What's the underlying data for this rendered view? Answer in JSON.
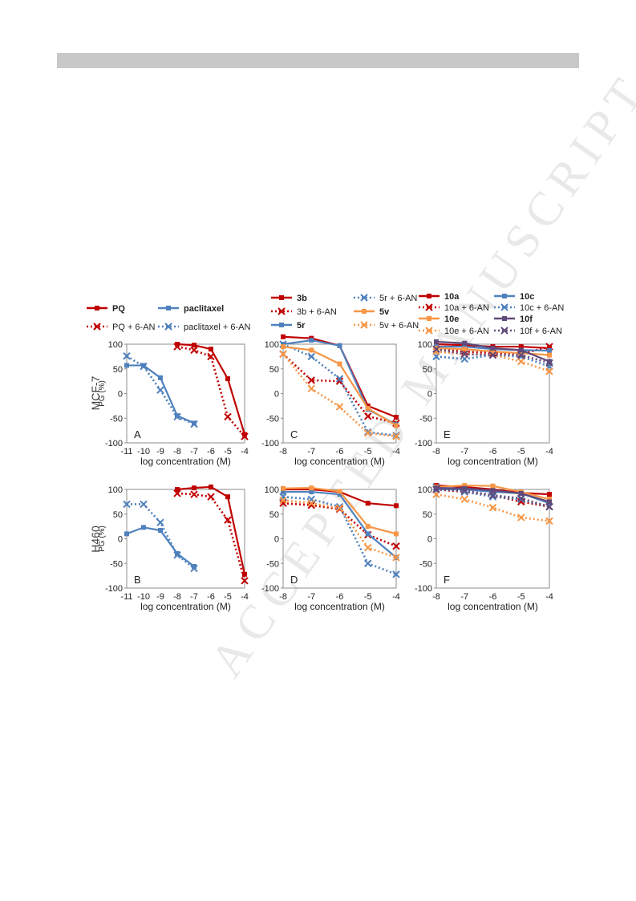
{
  "watermark": "ACCEPTED MANUSCRIPT",
  "colors": {
    "red": "#c00000",
    "blue": "#4f81bd",
    "orange": "#f79646",
    "purple": "#604a7b"
  },
  "row_labels": [
    "MCF-7",
    "H460"
  ],
  "legends": [
    {
      "items": [
        {
          "label": "PQ",
          "color": "red",
          "style": "solid"
        },
        {
          "label": "paclitaxel",
          "color": "blue",
          "style": "solid"
        },
        {
          "label": "PQ + 6-AN",
          "color": "red",
          "style": "dotted"
        },
        {
          "label": "paclitaxel + 6-AN",
          "color": "blue",
          "style": "dotted"
        }
      ]
    },
    {
      "items": [
        {
          "label": "3b",
          "color": "red",
          "style": "solid"
        },
        {
          "label": "5r + 6-AN",
          "color": "blue",
          "style": "dotted"
        },
        {
          "label": "3b + 6-AN",
          "color": "red",
          "style": "dotted"
        },
        {
          "label": "5v",
          "color": "orange",
          "style": "solid"
        },
        {
          "label": "5r",
          "color": "blue",
          "style": "solid"
        },
        {
          "label": "5v + 6-AN",
          "color": "orange",
          "style": "dotted"
        }
      ]
    },
    {
      "items": [
        {
          "label": "10a",
          "color": "red",
          "style": "solid"
        },
        {
          "label": "10c",
          "color": "blue",
          "style": "solid"
        },
        {
          "label": "10a + 6-AN",
          "color": "red",
          "style": "dotted"
        },
        {
          "label": "10c + 6-AN",
          "color": "blue",
          "style": "dotted"
        },
        {
          "label": "10e",
          "color": "orange",
          "style": "solid"
        },
        {
          "label": "10f",
          "color": "purple",
          "style": "solid"
        },
        {
          "label": "10e + 6-AN",
          "color": "orange",
          "style": "dotted"
        },
        {
          "label": "10f + 6-AN",
          "color": "purple",
          "style": "dotted"
        }
      ]
    }
  ],
  "chart_data": [
    {
      "panel": "A",
      "type": "line",
      "xlabel": "log concentration (M)",
      "ylabel": "PG (%)",
      "xlim": [
        -11,
        -4
      ],
      "ylim": [
        -100,
        100
      ],
      "xticks": [
        -11,
        -10,
        -9,
        -8,
        -7,
        -6,
        -5,
        -4
      ],
      "yticks": [
        100,
        50,
        0,
        -50,
        -100
      ],
      "series": [
        {
          "name": "PQ",
          "color": "red",
          "style": "solid",
          "x": [
            -8,
            -7,
            -6,
            -5,
            -4
          ],
          "y": [
            100,
            98,
            90,
            30,
            -83
          ]
        },
        {
          "name": "PQ + 6-AN",
          "color": "red",
          "style": "dotted",
          "x": [
            -8,
            -7,
            -6,
            -5,
            -4
          ],
          "y": [
            95,
            88,
            75,
            -47,
            -87
          ]
        },
        {
          "name": "paclitaxel",
          "color": "blue",
          "style": "solid",
          "x": [
            -11,
            -10,
            -9,
            -8,
            -7
          ],
          "y": [
            57,
            57,
            32,
            -45,
            -60
          ]
        },
        {
          "name": "paclitaxel + 6-AN",
          "color": "blue",
          "style": "dotted",
          "x": [
            -11,
            -10,
            -9,
            -8,
            -7
          ],
          "y": [
            76,
            55,
            7,
            -47,
            -62
          ]
        }
      ]
    },
    {
      "panel": "C",
      "type": "line",
      "xlabel": "log concentration (M)",
      "ylabel": "",
      "xlim": [
        -8,
        -4
      ],
      "ylim": [
        -100,
        100
      ],
      "xticks": [
        -8,
        -7,
        -6,
        -5,
        -4
      ],
      "yticks": [
        100,
        50,
        0,
        -50,
        -100
      ],
      "series": [
        {
          "name": "3b",
          "color": "red",
          "style": "solid",
          "x": [
            -8,
            -7,
            -6,
            -5,
            -4
          ],
          "y": [
            115,
            112,
            97,
            -25,
            -48
          ]
        },
        {
          "name": "3b + 6-AN",
          "color": "red",
          "style": "dotted",
          "x": [
            -8,
            -7,
            -6,
            -5,
            -4
          ],
          "y": [
            80,
            27,
            25,
            -46,
            -60
          ]
        },
        {
          "name": "5r",
          "color": "blue",
          "style": "solid",
          "x": [
            -8,
            -7,
            -6,
            -5,
            -4
          ],
          "y": [
            100,
            108,
            97,
            -32,
            -63
          ]
        },
        {
          "name": "5r + 6-AN",
          "color": "blue",
          "style": "dotted",
          "x": [
            -8,
            -7,
            -6,
            -5,
            -4
          ],
          "y": [
            100,
            75,
            30,
            -78,
            -85
          ]
        },
        {
          "name": "5v",
          "color": "orange",
          "style": "solid",
          "x": [
            -8,
            -7,
            -6,
            -5,
            -4
          ],
          "y": [
            95,
            88,
            60,
            -30,
            -65
          ]
        },
        {
          "name": "5v + 6-AN",
          "color": "orange",
          "style": "dotted",
          "x": [
            -8,
            -7,
            -6,
            -5,
            -4
          ],
          "y": [
            80,
            10,
            -27,
            -80,
            -87
          ]
        }
      ]
    },
    {
      "panel": "E",
      "type": "line",
      "xlabel": "log concentration (M)",
      "ylabel": "",
      "xlim": [
        -8,
        -4
      ],
      "ylim": [
        -100,
        100
      ],
      "xticks": [
        -8,
        -7,
        -6,
        -5,
        -4
      ],
      "yticks": [
        100,
        50,
        0,
        -50,
        -100
      ],
      "series": [
        {
          "name": "10a",
          "color": "red",
          "style": "solid",
          "x": [
            -8,
            -7,
            -6,
            -5,
            -4
          ],
          "y": [
            100,
            98,
            95,
            95,
            92
          ]
        },
        {
          "name": "10a + 6-AN",
          "color": "red",
          "style": "dotted",
          "x": [
            -8,
            -7,
            -6,
            -5,
            -4
          ],
          "y": [
            90,
            85,
            82,
            80,
            95
          ]
        },
        {
          "name": "10c",
          "color": "blue",
          "style": "solid",
          "x": [
            -8,
            -7,
            -6,
            -5,
            -4
          ],
          "y": [
            95,
            95,
            90,
            88,
            87
          ]
        },
        {
          "name": "10c + 6-AN",
          "color": "blue",
          "style": "dotted",
          "x": [
            -8,
            -7,
            -6,
            -5,
            -4
          ],
          "y": [
            75,
            70,
            78,
            75,
            55
          ]
        },
        {
          "name": "10e",
          "color": "orange",
          "style": "solid",
          "x": [
            -8,
            -7,
            -6,
            -5,
            -4
          ],
          "y": [
            92,
            90,
            85,
            82,
            78
          ]
        },
        {
          "name": "10e + 6-AN",
          "color": "orange",
          "style": "dotted",
          "x": [
            -8,
            -7,
            -6,
            -5,
            -4
          ],
          "y": [
            85,
            80,
            78,
            65,
            45
          ]
        },
        {
          "name": "10f",
          "color": "purple",
          "style": "solid",
          "x": [
            -8,
            -7,
            -6,
            -5,
            -4
          ],
          "y": [
            105,
            102,
            92,
            88,
            65
          ]
        },
        {
          "name": "10f + 6-AN",
          "color": "purple",
          "style": "dotted",
          "x": [
            -8,
            -7,
            -6,
            -5,
            -4
          ],
          "y": [
            90,
            80,
            78,
            78,
            62
          ]
        }
      ]
    },
    {
      "panel": "B",
      "type": "line",
      "xlabel": "log concentration (M)",
      "ylabel": "PG (%)",
      "xlim": [
        -11,
        -4
      ],
      "ylim": [
        -100,
        100
      ],
      "xticks": [
        -11,
        -10,
        -9,
        -8,
        -7,
        -6,
        -5,
        -4
      ],
      "yticks": [
        100,
        50,
        0,
        -50,
        -100
      ],
      "series": [
        {
          "name": "PQ",
          "color": "red",
          "style": "solid",
          "x": [
            -8,
            -7,
            -6,
            -5,
            -4
          ],
          "y": [
            100,
            103,
            105,
            85,
            -72
          ]
        },
        {
          "name": "PQ + 6-AN",
          "color": "red",
          "style": "dotted",
          "x": [
            -8,
            -7,
            -6,
            -5,
            -4
          ],
          "y": [
            92,
            90,
            85,
            38,
            -85
          ]
        },
        {
          "name": "paclitaxel",
          "color": "blue",
          "style": "solid",
          "x": [
            -11,
            -10,
            -9,
            -8,
            -7
          ],
          "y": [
            10,
            23,
            17,
            -30,
            -56
          ]
        },
        {
          "name": "paclitaxel + 6-AN",
          "color": "blue",
          "style": "dotted",
          "x": [
            -11,
            -10,
            -9,
            -8,
            -7
          ],
          "y": [
            70,
            70,
            33,
            -33,
            -60
          ]
        }
      ]
    },
    {
      "panel": "D",
      "type": "line",
      "xlabel": "log concentration (M)",
      "ylabel": "",
      "xlim": [
        -8,
        -4
      ],
      "ylim": [
        -100,
        100
      ],
      "xticks": [
        -8,
        -7,
        -6,
        -5,
        -4
      ],
      "yticks": [
        100,
        50,
        0,
        -50,
        -100
      ],
      "series": [
        {
          "name": "3b",
          "color": "red",
          "style": "solid",
          "x": [
            -8,
            -7,
            -6,
            -5,
            -4
          ],
          "y": [
            100,
            100,
            95,
            72,
            67
          ]
        },
        {
          "name": "3b + 6-AN",
          "color": "red",
          "style": "dotted",
          "x": [
            -8,
            -7,
            -6,
            -5,
            -4
          ],
          "y": [
            72,
            68,
            60,
            8,
            -15
          ]
        },
        {
          "name": "5r",
          "color": "blue",
          "style": "solid",
          "x": [
            -8,
            -7,
            -6,
            -5,
            -4
          ],
          "y": [
            95,
            95,
            90,
            10,
            -38
          ]
        },
        {
          "name": "5r + 6-AN",
          "color": "blue",
          "style": "dotted",
          "x": [
            -8,
            -7,
            -6,
            -5,
            -4
          ],
          "y": [
            85,
            80,
            65,
            -50,
            -72
          ]
        },
        {
          "name": "5v",
          "color": "orange",
          "style": "solid",
          "x": [
            -8,
            -7,
            -6,
            -5,
            -4
          ],
          "y": [
            102,
            103,
            96,
            25,
            10
          ]
        },
        {
          "name": "5v + 6-AN",
          "color": "orange",
          "style": "dotted",
          "x": [
            -8,
            -7,
            -6,
            -5,
            -4
          ],
          "y": [
            78,
            72,
            62,
            -18,
            -38
          ]
        }
      ]
    },
    {
      "panel": "F",
      "type": "line",
      "xlabel": "log concentration (M)",
      "ylabel": "",
      "xlim": [
        -8,
        -4
      ],
      "ylim": [
        -100,
        100
      ],
      "xticks": [
        -8,
        -7,
        -6,
        -5,
        -4
      ],
      "yticks": [
        100,
        50,
        0,
        -50,
        -100
      ],
      "series": [
        {
          "name": "10a",
          "color": "red",
          "style": "solid",
          "x": [
            -8,
            -7,
            -6,
            -5,
            -4
          ],
          "y": [
            108,
            105,
            100,
            93,
            90
          ]
        },
        {
          "name": "10a + 6-AN",
          "color": "red",
          "style": "dotted",
          "x": [
            -8,
            -7,
            -6,
            -5,
            -4
          ],
          "y": [
            100,
            95,
            88,
            75,
            65
          ]
        },
        {
          "name": "10c",
          "color": "blue",
          "style": "solid",
          "x": [
            -8,
            -7,
            -6,
            -5,
            -4
          ],
          "y": [
            100,
            100,
            95,
            92,
            72
          ]
        },
        {
          "name": "10c + 6-AN",
          "color": "blue",
          "style": "dotted",
          "x": [
            -8,
            -7,
            -6,
            -5,
            -4
          ],
          "y": [
            105,
            95,
            85,
            80,
            65
          ]
        },
        {
          "name": "10e",
          "color": "orange",
          "style": "solid",
          "x": [
            -8,
            -7,
            -6,
            -5,
            -4
          ],
          "y": [
            105,
            108,
            107,
            95,
            80
          ]
        },
        {
          "name": "10e + 6-AN",
          "color": "orange",
          "style": "dotted",
          "x": [
            -8,
            -7,
            -6,
            -5,
            -4
          ],
          "y": [
            90,
            80,
            63,
            43,
            36
          ]
        },
        {
          "name": "10f",
          "color": "purple",
          "style": "solid",
          "x": [
            -8,
            -7,
            -6,
            -5,
            -4
          ],
          "y": [
            103,
            102,
            98,
            92,
            75
          ]
        },
        {
          "name": "10f + 6-AN",
          "color": "purple",
          "style": "dotted",
          "x": [
            -8,
            -7,
            -6,
            -5,
            -4
          ],
          "y": [
            100,
            98,
            88,
            82,
            65
          ]
        }
      ]
    }
  ]
}
